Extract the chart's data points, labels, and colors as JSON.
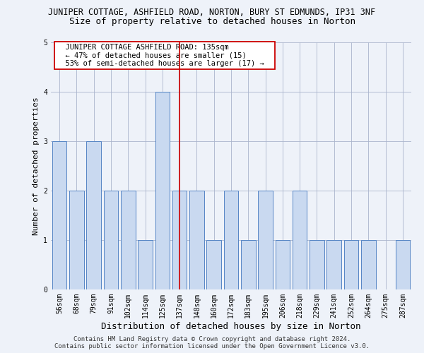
{
  "title": "JUNIPER COTTAGE, ASHFIELD ROAD, NORTON, BURY ST EDMUNDS, IP31 3NF",
  "subtitle": "Size of property relative to detached houses in Norton",
  "xlabel": "Distribution of detached houses by size in Norton",
  "ylabel": "Number of detached properties",
  "categories": [
    "56sqm",
    "68sqm",
    "79sqm",
    "91sqm",
    "102sqm",
    "114sqm",
    "125sqm",
    "137sqm",
    "148sqm",
    "160sqm",
    "172sqm",
    "183sqm",
    "195sqm",
    "206sqm",
    "218sqm",
    "229sqm",
    "241sqm",
    "252sqm",
    "264sqm",
    "275sqm",
    "287sqm"
  ],
  "values": [
    3,
    2,
    3,
    2,
    2,
    1,
    4,
    2,
    2,
    1,
    2,
    1,
    2,
    1,
    2,
    1,
    1,
    1,
    1,
    0,
    1
  ],
  "highlight_index": 7,
  "bar_color": "#c9d9f0",
  "bar_edge_color": "#5585c5",
  "highlight_line_color": "#cc0000",
  "annotation_text": "  JUNIPER COTTAGE ASHFIELD ROAD: 135sqm  \n  ← 47% of detached houses are smaller (15)  \n  53% of semi-detached houses are larger (17) →  ",
  "annotation_box_color": "#ffffff",
  "annotation_box_edge_color": "#cc0000",
  "ylim": [
    0,
    5
  ],
  "yticks": [
    0,
    1,
    2,
    3,
    4,
    5
  ],
  "footer_line1": "Contains HM Land Registry data © Crown copyright and database right 2024.",
  "footer_line2": "Contains public sector information licensed under the Open Government Licence v3.0.",
  "background_color": "#eef2f9",
  "title_fontsize": 8.5,
  "subtitle_fontsize": 9,
  "xlabel_fontsize": 9,
  "ylabel_fontsize": 8,
  "tick_fontsize": 7,
  "annotation_fontsize": 7.5,
  "footer_fontsize": 6.5
}
